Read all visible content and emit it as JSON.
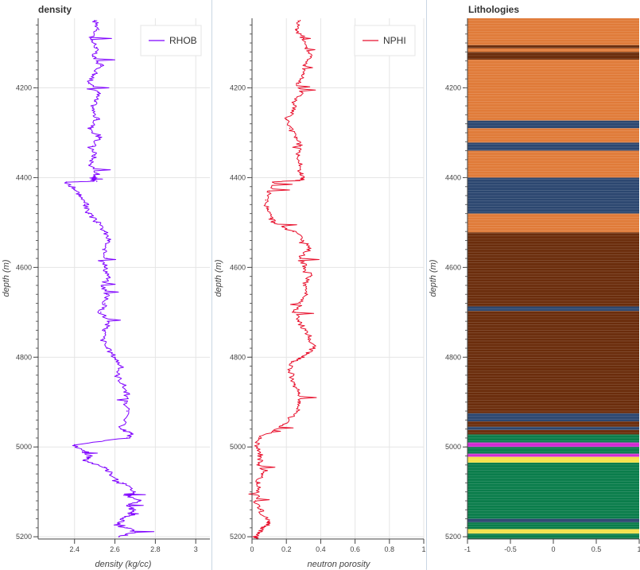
{
  "panels": [
    {
      "id": "density",
      "title": "density",
      "xlabel": "density (kg/cc)",
      "ylabel": "depth (m)",
      "x_ticks": [
        "2.4",
        "2.6",
        "2.8",
        "3"
      ],
      "y_ticks": [
        "4200",
        "4400",
        "4600",
        "4800",
        "5000",
        "5200"
      ],
      "legend": "RHOB",
      "color": "#7f00ff"
    },
    {
      "id": "nphi",
      "title": "",
      "xlabel": "neutron porosity",
      "ylabel": "depth (m)",
      "x_ticks": [
        "0",
        "0.2",
        "0.4",
        "0.6",
        "0.8",
        "1"
      ],
      "y_ticks": [
        "4200",
        "4400",
        "4600",
        "4800",
        "5000",
        "5200"
      ],
      "legend": "NPHI",
      "color": "#e8112d"
    },
    {
      "id": "lith",
      "title": "Lithologies",
      "xlabel": "",
      "ylabel": "depth (m)",
      "x_ticks": [
        "-1",
        "-0.5",
        "0",
        "0.5",
        "1"
      ],
      "y_ticks": [
        "4200",
        "4400",
        "4600",
        "4800",
        "5000",
        "5200"
      ]
    }
  ],
  "chart_data": [
    {
      "type": "line",
      "title": "density",
      "xlabel": "density (kg/cc)",
      "ylabel": "depth (m)",
      "xlim": [
        2.22,
        3.07
      ],
      "ylim": [
        5205,
        4045
      ],
      "y_inverted": true,
      "grid": true,
      "legend_position": "top-right",
      "series": [
        {
          "name": "RHOB",
          "color": "#7f00ff",
          "x": [
            2.5,
            2.52,
            2.48,
            2.51,
            2.49,
            2.53,
            2.5,
            2.47,
            2.52,
            2.5,
            2.49,
            2.51,
            2.48,
            2.52,
            2.49,
            2.5,
            2.48,
            2.51,
            2.5,
            2.49,
            2.5,
            2.51,
            2.36,
            2.4,
            2.43,
            2.45,
            2.47,
            2.51,
            2.55,
            2.57,
            2.54,
            2.56,
            2.55,
            2.57,
            2.54,
            2.56,
            2.55,
            2.53,
            2.57,
            2.55,
            2.54,
            2.56,
            2.6,
            2.63,
            2.61,
            2.64,
            2.66,
            2.65,
            2.66,
            2.63,
            2.68,
            2.66,
            2.4,
            2.44,
            2.48,
            2.45,
            2.55,
            2.58,
            2.64,
            2.7,
            2.67,
            2.72,
            2.66,
            2.69,
            2.67,
            2.64,
            2.62,
            2.66,
            2.7,
            2.62
          ],
          "y": [
            4050,
            4070,
            4090,
            4110,
            4130,
            4150,
            4170,
            4190,
            4210,
            4230,
            4250,
            4270,
            4290,
            4310,
            4330,
            4350,
            4370,
            4390,
            4400,
            4402,
            4405,
            4408,
            4410,
            4425,
            4440,
            4460,
            4480,
            4500,
            4520,
            4540,
            4560,
            4580,
            4600,
            4620,
            4640,
            4660,
            4680,
            4700,
            4720,
            4740,
            4760,
            4780,
            4800,
            4820,
            4840,
            4860,
            4880,
            4900,
            4920,
            4960,
            4970,
            4980,
            4995,
            5010,
            5020,
            5030,
            5045,
            5060,
            5080,
            5100,
            5110,
            5120,
            5130,
            5140,
            5150,
            5160,
            5170,
            5180,
            5190,
            5200
          ]
        }
      ]
    },
    {
      "type": "line",
      "title": "",
      "xlabel": "neutron porosity",
      "ylabel": "depth (m)",
      "xlim": [
        0,
        1
      ],
      "ylim": [
        5205,
        4045
      ],
      "y_inverted": true,
      "grid": true,
      "legend_position": "top-right",
      "series": [
        {
          "name": "NPHI",
          "color": "#e8112d",
          "x": [
            0.28,
            0.26,
            0.3,
            0.32,
            0.34,
            0.31,
            0.3,
            0.27,
            0.29,
            0.25,
            0.24,
            0.2,
            0.22,
            0.26,
            0.28,
            0.27,
            0.29,
            0.28,
            0.3,
            0.29,
            0.12,
            0.1,
            0.08,
            0.09,
            0.11,
            0.13,
            0.18,
            0.24,
            0.3,
            0.33,
            0.28,
            0.31,
            0.34,
            0.3,
            0.32,
            0.28,
            0.25,
            0.27,
            0.31,
            0.34,
            0.36,
            0.32,
            0.3,
            0.24,
            0.22,
            0.25,
            0.27,
            0.28,
            0.26,
            0.18,
            0.12,
            0.04,
            0.03,
            0.05,
            0.04,
            0.06,
            0.03,
            0.04,
            0.02,
            0.05,
            0.08,
            0.1,
            0.06,
            0.04,
            0.02,
            0.03
          ],
          "y": [
            4050,
            4070,
            4090,
            4110,
            4130,
            4150,
            4170,
            4190,
            4210,
            4230,
            4250,
            4270,
            4290,
            4310,
            4330,
            4350,
            4370,
            4390,
            4400,
            4405,
            4410,
            4430,
            4450,
            4470,
            4490,
            4500,
            4510,
            4520,
            4540,
            4560,
            4580,
            4600,
            4620,
            4640,
            4660,
            4680,
            4700,
            4720,
            4740,
            4760,
            4780,
            4790,
            4800,
            4810,
            4830,
            4860,
            4880,
            4900,
            4920,
            4950,
            4965,
            4980,
            5000,
            5020,
            5040,
            5060,
            5080,
            5100,
            5120,
            5140,
            5160,
            5170,
            5180,
            5190,
            5200,
            5205
          ]
        }
      ]
    },
    {
      "type": "heatmap",
      "title": "Lithologies",
      "xlabel": "",
      "ylabel": "depth (m)",
      "xlim": [
        -1,
        1
      ],
      "ylim": [
        5205,
        4045
      ],
      "y_inverted": true,
      "colors": {
        "orange": "#e07b39",
        "dark_brown": "#6b2d0c",
        "blue": "#2c4770",
        "green": "#0a7d4b",
        "magenta": "#d22ad2",
        "yellow": "#f5e14a"
      },
      "bands": [
        {
          "top": 4045,
          "bottom": 4105,
          "color": "orange"
        },
        {
          "top": 4105,
          "bottom": 4112,
          "color": "dark_brown"
        },
        {
          "top": 4112,
          "bottom": 4120,
          "color": "orange"
        },
        {
          "top": 4120,
          "bottom": 4137,
          "color": "dark_brown"
        },
        {
          "top": 4137,
          "bottom": 4273,
          "color": "orange"
        },
        {
          "top": 4273,
          "bottom": 4290,
          "color": "blue"
        },
        {
          "top": 4290,
          "bottom": 4322,
          "color": "orange"
        },
        {
          "top": 4322,
          "bottom": 4340,
          "color": "blue"
        },
        {
          "top": 4340,
          "bottom": 4400,
          "color": "orange"
        },
        {
          "top": 4400,
          "bottom": 4480,
          "color": "blue"
        },
        {
          "top": 4480,
          "bottom": 4522,
          "color": "orange"
        },
        {
          "top": 4522,
          "bottom": 4687,
          "color": "dark_brown"
        },
        {
          "top": 4687,
          "bottom": 4697,
          "color": "blue"
        },
        {
          "top": 4697,
          "bottom": 4925,
          "color": "dark_brown"
        },
        {
          "top": 4925,
          "bottom": 4943,
          "color": "blue"
        },
        {
          "top": 4943,
          "bottom": 4955,
          "color": "dark_brown"
        },
        {
          "top": 4955,
          "bottom": 4962,
          "color": "blue"
        },
        {
          "top": 4962,
          "bottom": 4972,
          "color": "dark_brown"
        },
        {
          "top": 4972,
          "bottom": 4990,
          "color": "green"
        },
        {
          "top": 4990,
          "bottom": 5000,
          "color": "magenta"
        },
        {
          "top": 5000,
          "bottom": 5015,
          "color": "green"
        },
        {
          "top": 5015,
          "bottom": 5022,
          "color": "magenta"
        },
        {
          "top": 5022,
          "bottom": 5035,
          "color": "yellow"
        },
        {
          "top": 5035,
          "bottom": 5160,
          "color": "green"
        },
        {
          "top": 5160,
          "bottom": 5168,
          "color": "blue"
        },
        {
          "top": 5168,
          "bottom": 5183,
          "color": "green"
        },
        {
          "top": 5183,
          "bottom": 5193,
          "color": "yellow"
        },
        {
          "top": 5193,
          "bottom": 5205,
          "color": "green"
        }
      ]
    }
  ]
}
